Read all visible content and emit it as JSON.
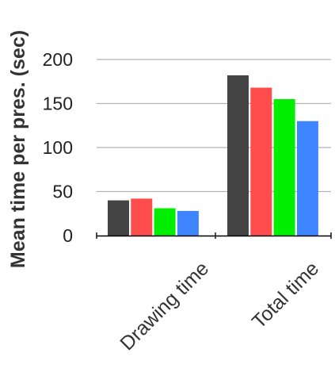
{
  "chart_data": {
    "type": "bar",
    "categories": [
      "Drawing time",
      "Total time"
    ],
    "series": [
      {
        "color": "#444444",
        "values": [
          40,
          182
        ]
      },
      {
        "color": "#ff4d4d",
        "values": [
          42,
          168
        ]
      },
      {
        "color": "#00ee00",
        "values": [
          31,
          155
        ]
      },
      {
        "color": "#3f85ff",
        "values": [
          28,
          130
        ]
      }
    ],
    "ylabel": "Mean time per pres. (sec)",
    "ylim": [
      0,
      200
    ],
    "yticks": [
      0,
      50,
      100,
      150,
      200
    ],
    "grid": true
  }
}
